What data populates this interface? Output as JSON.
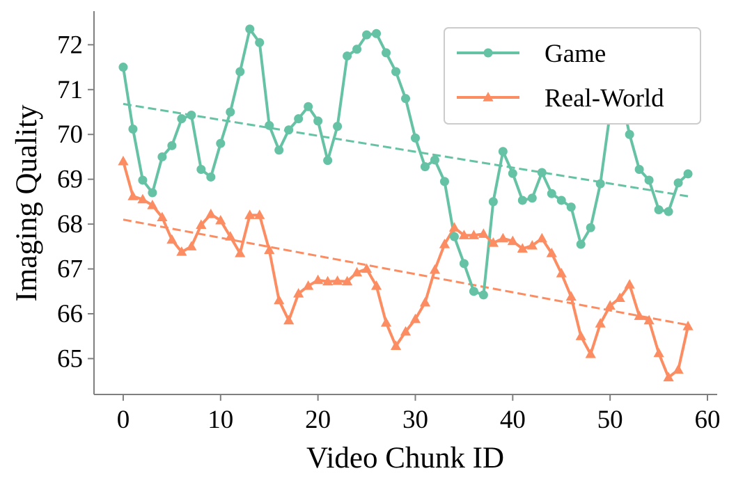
{
  "chart_data": {
    "type": "line",
    "xlabel": "Video Chunk ID",
    "ylabel": "Imaging Quality",
    "xlim": [
      -3,
      61
    ],
    "ylim": [
      64.2,
      72.75
    ],
    "xticks": [
      0,
      10,
      20,
      30,
      40,
      50,
      60
    ],
    "yticks": [
      65,
      66,
      67,
      68,
      69,
      70,
      71,
      72
    ],
    "grid": false,
    "legend_position": "top-right",
    "x": [
      0,
      1,
      2,
      3,
      4,
      5,
      6,
      7,
      8,
      9,
      10,
      11,
      12,
      13,
      14,
      15,
      16,
      17,
      18,
      19,
      20,
      21,
      22,
      23,
      24,
      25,
      26,
      27,
      28,
      29,
      30,
      31,
      32,
      33,
      34,
      35,
      36,
      37,
      38,
      39,
      40,
      41,
      42,
      43,
      44,
      45,
      46,
      47,
      48,
      49,
      50,
      51,
      52,
      53,
      54,
      55,
      56,
      57,
      58
    ],
    "series": [
      {
        "name": "Game",
        "color": "#66c2a5",
        "marker": "circle",
        "values": [
          71.5,
          70.12,
          68.98,
          68.7,
          69.5,
          69.75,
          70.35,
          70.43,
          69.22,
          69.05,
          69.8,
          70.5,
          71.4,
          72.35,
          72.05,
          70.2,
          69.65,
          70.1,
          70.35,
          70.62,
          70.3,
          69.42,
          70.18,
          71.75,
          71.9,
          72.22,
          72.25,
          71.82,
          71.4,
          70.8,
          69.92,
          69.28,
          69.43,
          68.95,
          67.72,
          67.12,
          66.5,
          66.42,
          68.5,
          69.62,
          69.13,
          68.53,
          68.58,
          69.15,
          68.68,
          68.53,
          68.38,
          67.55,
          67.92,
          68.9,
          70.48,
          71.0,
          70.0,
          69.22,
          68.98,
          68.32,
          68.28,
          68.92,
          69.12
        ]
      },
      {
        "name": "Real-World",
        "color": "#fc8d62",
        "marker": "triangle",
        "values": [
          69.4,
          68.62,
          68.55,
          68.42,
          68.15,
          67.65,
          67.38,
          67.5,
          67.98,
          68.22,
          68.08,
          67.72,
          67.35,
          68.2,
          68.2,
          67.42,
          66.3,
          65.85,
          66.45,
          66.62,
          66.75,
          66.72,
          66.73,
          66.72,
          66.92,
          67.0,
          66.62,
          65.8,
          65.28,
          65.6,
          65.88,
          66.25,
          66.98,
          67.55,
          67.92,
          67.75,
          67.75,
          67.78,
          67.58,
          67.68,
          67.62,
          67.45,
          67.52,
          67.68,
          67.35,
          66.9,
          66.38,
          65.5,
          65.1,
          65.78,
          66.18,
          66.35,
          66.65,
          65.95,
          65.85,
          65.12,
          64.58,
          64.75,
          65.72
        ]
      }
    ],
    "trendlines": [
      {
        "series": "Game",
        "x": [
          0,
          58
        ],
        "y": [
          70.68,
          68.62
        ],
        "style": "dashed"
      },
      {
        "series": "Real-World",
        "x": [
          0,
          58
        ],
        "y": [
          68.1,
          65.75
        ],
        "style": "dashed"
      }
    ]
  }
}
